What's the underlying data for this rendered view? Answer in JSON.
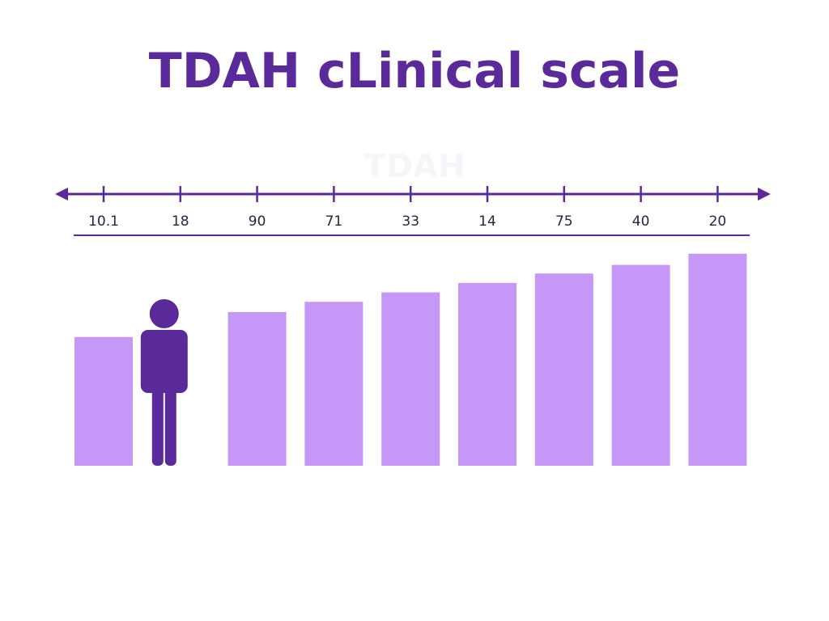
{
  "colors": {
    "accent": "#5b2a9a",
    "bar": "#c597f6",
    "figure": "#5b2a9a",
    "background": "#ffffff"
  },
  "chart_data": {
    "type": "bar",
    "title": "TDAH cLinical scale",
    "watermark": "TDAH",
    "xlabel": "",
    "ylabel": "",
    "categories": [
      "10.1",
      "18",
      "90",
      "71",
      "33",
      "14",
      "75",
      "40",
      "20"
    ],
    "values": [
      150,
      null,
      179,
      191,
      202,
      213,
      224,
      234,
      247
    ],
    "ylim": [
      0,
      260
    ],
    "grid": false,
    "legend": "none",
    "axis_arrows": "both",
    "markers": [
      {
        "category_index": 1,
        "icon": "person-icon"
      }
    ]
  }
}
